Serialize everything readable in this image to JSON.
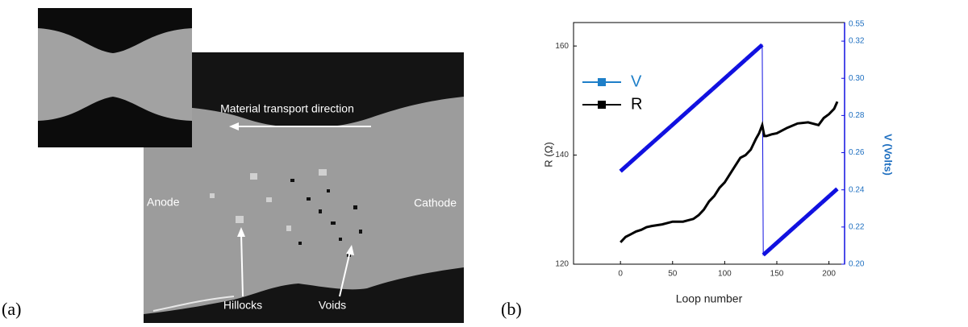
{
  "panel_a": {
    "label": "(a)",
    "annotations": {
      "transport": "Material transport direction",
      "anode": "Anode",
      "cathode": "Cathode",
      "hillocks": "Hillocks",
      "voids": "Voids"
    }
  },
  "chart_data": {
    "type": "line",
    "panel_label": "(b)",
    "x_label": "Loop number",
    "y_label": "R (Ω)",
    "y2_label": "V (Volts)",
    "xlim": [
      -45,
      215
    ],
    "xticks": [
      0,
      50,
      100,
      150,
      200
    ],
    "ylim": [
      120,
      164.3
    ],
    "yticks": [
      120,
      140,
      160
    ],
    "y2lim": [
      0.2,
      0.33
    ],
    "y2ticks": [
      {
        "value": 0.2,
        "label": "0.20"
      },
      {
        "value": 0.22,
        "label": "0.22"
      },
      {
        "value": 0.24,
        "label": "0.24"
      },
      {
        "value": 0.26,
        "label": "0.26"
      },
      {
        "value": 0.28,
        "label": "0.28"
      },
      {
        "value": 0.3,
        "label": "0.30"
      },
      {
        "value": 0.32,
        "label": "0.32"
      }
    ],
    "y2_top_label": "0.55",
    "series": [
      {
        "name": "V",
        "color": "#1010e0",
        "legend_color": "#1e7fc8",
        "axis": "y2",
        "x": [
          0,
          8,
          16,
          24,
          32,
          40,
          48,
          56,
          64,
          72,
          80,
          88,
          96,
          104,
          112,
          120,
          128,
          136,
          137,
          145,
          153,
          161,
          169,
          177,
          185,
          193,
          201,
          208
        ],
        "values": [
          0.25,
          0.254,
          0.258,
          0.262,
          0.266,
          0.27,
          0.274,
          0.278,
          0.282,
          0.286,
          0.29,
          0.294,
          0.298,
          0.302,
          0.306,
          0.31,
          0.314,
          0.318,
          0.205,
          0.209,
          0.213,
          0.217,
          0.221,
          0.225,
          0.229,
          0.233,
          0.237,
          0.2405
        ]
      },
      {
        "name": "R",
        "color": "#000000",
        "x": [
          0,
          5,
          10,
          15,
          20,
          25,
          30,
          40,
          50,
          60,
          70,
          75,
          80,
          85,
          90,
          95,
          100,
          105,
          110,
          115,
          120,
          125,
          130,
          133,
          136,
          138,
          140,
          145,
          150,
          160,
          170,
          180,
          190,
          195,
          200,
          205,
          208
        ],
        "values": [
          124,
          125,
          125.5,
          126,
          126.3,
          126.8,
          127,
          127.3,
          127.8,
          127.8,
          128.3,
          129,
          130,
          131.5,
          132.5,
          134,
          135,
          136.5,
          138,
          139.5,
          140,
          141,
          143,
          144,
          145.5,
          143.5,
          143.5,
          143.8,
          144,
          145,
          145.8,
          146,
          145.5,
          146.8,
          147.5,
          148.5,
          149.8
        ]
      }
    ]
  }
}
